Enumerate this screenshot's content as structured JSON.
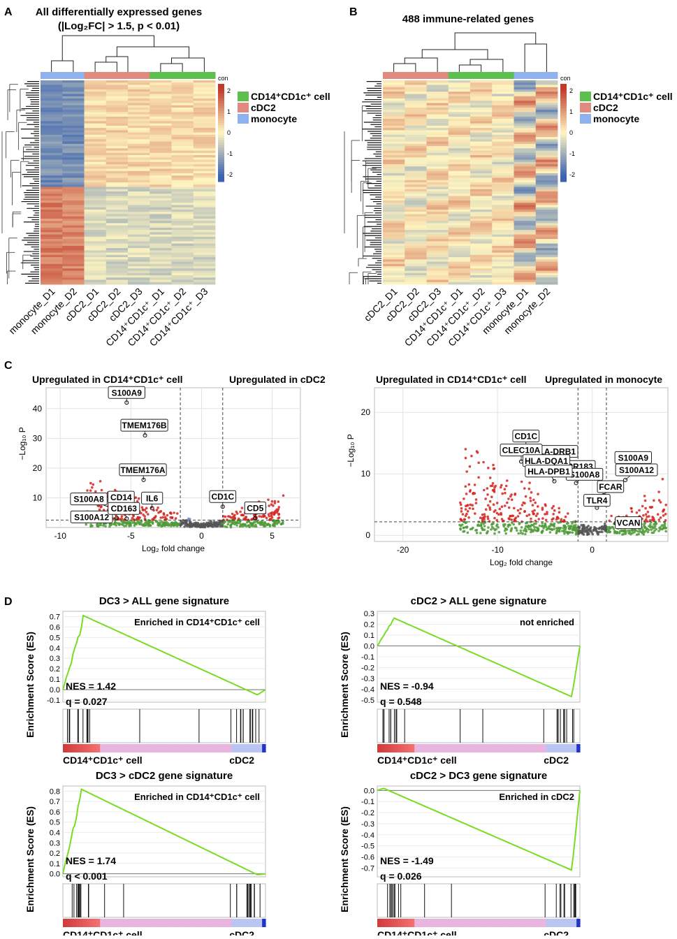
{
  "panel_letters": {
    "A": "A",
    "B": "B",
    "C": "C",
    "D": "D"
  },
  "colors": {
    "cd14_cd1c": "#5CBF4E",
    "cdc2": "#E08A80",
    "monocyte": "#8FB2EE",
    "heat_high": "#C0392B",
    "heat_mid": "#FFF5C0",
    "heat_low": "#3A62B0",
    "volcano_sig": "#D4241E",
    "volcano_fc": "#6B8FE0",
    "volcano_p": "#4F9A36",
    "volcano_ns": "#555555",
    "gsea_line": "#77DD22"
  },
  "heatmaps": {
    "color_key_title": "con",
    "color_key_ticks": [
      "2",
      "1",
      "0",
      "-1",
      "-2"
    ],
    "legend": [
      {
        "label": "CD14⁺CD1c⁺ cell",
        "color": "#5CBF4E"
      },
      {
        "label": "cDC2",
        "color": "#E08A80"
      },
      {
        "label": "monocyte",
        "color": "#8FB2EE"
      }
    ],
    "A": {
      "title_line1": "All differentially expressed genes",
      "title_line2": "(|Log₂FC| > 1.5, p < 0.01)",
      "samples": [
        "monocyte_D1",
        "monocyte_D2",
        "cDC2_D1",
        "cDC2_D2",
        "cDC2_D3",
        "CD14⁺CD1c⁺_D1",
        "CD14⁺CD1c⁺_D2",
        "CD14⁺CD1c⁺_D3"
      ]
    },
    "B": {
      "title": "488 immune-related genes",
      "samples": [
        "cDC2_D1",
        "cDC2_D2",
        "cDC2_D3",
        "CD14⁺CD1c⁺_D1",
        "CD14⁺CD1c⁺_D2",
        "CD14⁺CD1c⁺_D3",
        "monocyte_D1",
        "monocyte_D2"
      ]
    }
  },
  "volcanoes": {
    "y_axis_label": "−Log₁₀ P",
    "x_axis_label": "Log₂ fold change",
    "left": {
      "header_left": "Upregulated in CD14⁺CD1c⁺ cell",
      "header_right": "Upregulated in cDC2",
      "x_ticks": [
        "-10",
        "-5",
        "0",
        "5"
      ],
      "y_ticks": [
        "10",
        "20",
        "30",
        "40"
      ],
      "genes": [
        {
          "name": "S100A9",
          "x": -5.3,
          "y": 42
        },
        {
          "name": "TMEM176B",
          "x": -4.0,
          "y": 31
        },
        {
          "name": "TMEM176A",
          "x": -4.1,
          "y": 16
        },
        {
          "name": "CD14",
          "x": -4.7,
          "y": 6.8
        },
        {
          "name": "S100A8",
          "x": -6.2,
          "y": 6.2
        },
        {
          "name": "S100A12",
          "x": -6.0,
          "y": 3.2
        },
        {
          "name": "IL6",
          "x": -3.5,
          "y": 6.5
        },
        {
          "name": "CD163",
          "x": -5.3,
          "y": 3.0
        },
        {
          "name": "CD1C",
          "x": 1.5,
          "y": 7.0
        },
        {
          "name": "CD5",
          "x": 3.8,
          "y": 3.2
        }
      ]
    },
    "right": {
      "header_left": "Upregulated in CD14⁺CD1c⁺ cell",
      "header_right": "Upregulated in monocyte",
      "x_ticks": [
        "-20",
        "-10",
        "0"
      ],
      "y_ticks": [
        "0",
        "10",
        "20"
      ],
      "genes": [
        {
          "name": "CD1C",
          "x": -7.0,
          "y": 14.5
        },
        {
          "name": "HLA-DRB1",
          "x": -4.0,
          "y": 12.0
        },
        {
          "name": "CLEC10A",
          "x": -7.5,
          "y": 12.0
        },
        {
          "name": "GPR183",
          "x": -2.5,
          "y": 10.0
        },
        {
          "name": "HLA-DQA1",
          "x": -4.4,
          "y": 10.5
        },
        {
          "name": "S100A8",
          "x": -1.7,
          "y": 8.5
        },
        {
          "name": "S100A9",
          "x": 3.3,
          "y": 11.0
        },
        {
          "name": "S100A12",
          "x": 3.5,
          "y": 9.0
        },
        {
          "name": "HLA-DPB1",
          "x": -4.0,
          "y": 8.8
        },
        {
          "name": "FCAR",
          "x": 1.2,
          "y": 6.5
        },
        {
          "name": "TLR4",
          "x": 0.5,
          "y": 4.5
        },
        {
          "name": "VCAN",
          "x": 2.5,
          "y": 2.0
        }
      ]
    }
  },
  "gsea": {
    "y_axis_label": "Enrichment Score (ES)",
    "x_left_label": "CD14⁺CD1c⁺ cell",
    "x_right_label": "cDC2",
    "panels": [
      {
        "title": "DC3 > ALL gene signature",
        "note": "Enriched in CD14⁺CD1c⁺ cell",
        "nes": "NES = 1.42",
        "q": "q = 0.027",
        "y_ticks": [
          "0.7",
          "0.6",
          "0.5",
          "0.4",
          "0.3",
          "0.2",
          "0.1",
          "0.0",
          "-0.1"
        ],
        "ylim": [
          -0.12,
          0.75
        ],
        "peak": 0.71,
        "peak_pos": 0.1,
        "end_min": -0.05
      },
      {
        "title": "cDC2 > ALL gene signature",
        "note": "not enriched",
        "nes": "NES = -0.94",
        "q": "q = 0.548",
        "y_ticks": [
          "0.3",
          "0.2",
          "0.1",
          "0.0",
          "-0.1",
          "-0.2",
          "-0.3",
          "-0.4",
          "-0.5"
        ],
        "ylim": [
          -0.52,
          0.32
        ],
        "peak": 0.26,
        "peak_pos": 0.08,
        "end_min": -0.47
      },
      {
        "title": "DC3 > cDC2 gene signature",
        "note": "Enriched in CD14⁺CD1c⁺ cell",
        "nes": "NES = 1.74",
        "q": "q < 0.001",
        "y_ticks": [
          "0.8",
          "0.7",
          "0.6",
          "0.5",
          "0.4",
          "0.3",
          "0.2",
          "0.1",
          "0.0"
        ],
        "ylim": [
          -0.03,
          0.85
        ],
        "peak": 0.82,
        "peak_pos": 0.09,
        "end_min": -0.01
      },
      {
        "title": "cDC2 > DC3 gene signature",
        "note": "Enriched in cDC2",
        "nes": "NES = -1.49",
        "q": "q = 0.026",
        "y_ticks": [
          "0.0",
          "-0.1",
          "-0.2",
          "-0.3",
          "-0.4",
          "-0.5",
          "-0.6",
          "-0.7"
        ],
        "ylim": [
          -0.78,
          0.04
        ],
        "peak": 0.02,
        "peak_pos": 0.03,
        "end_min": -0.72
      }
    ]
  }
}
